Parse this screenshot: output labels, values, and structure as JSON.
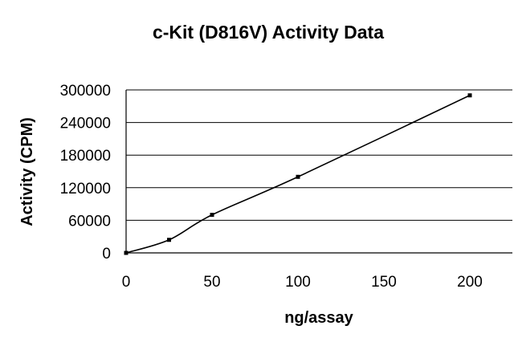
{
  "chart_data": {
    "type": "line",
    "title": "c-Kit (D816V) Activity Data",
    "xlabel": "ng/assay",
    "ylabel": "Activity (CPM)",
    "xlim": [
      0,
      200
    ],
    "ylim": [
      0,
      300000
    ],
    "xticks": [
      0,
      50,
      100,
      150,
      200
    ],
    "yticks": [
      0,
      60000,
      120000,
      180000,
      240000,
      300000
    ],
    "grid": "horizontal",
    "legend": "none",
    "series": [
      {
        "x": [
          0,
          25,
          50,
          100,
          200
        ],
        "y": [
          0,
          24000,
          70000,
          140000,
          290000
        ]
      }
    ]
  }
}
